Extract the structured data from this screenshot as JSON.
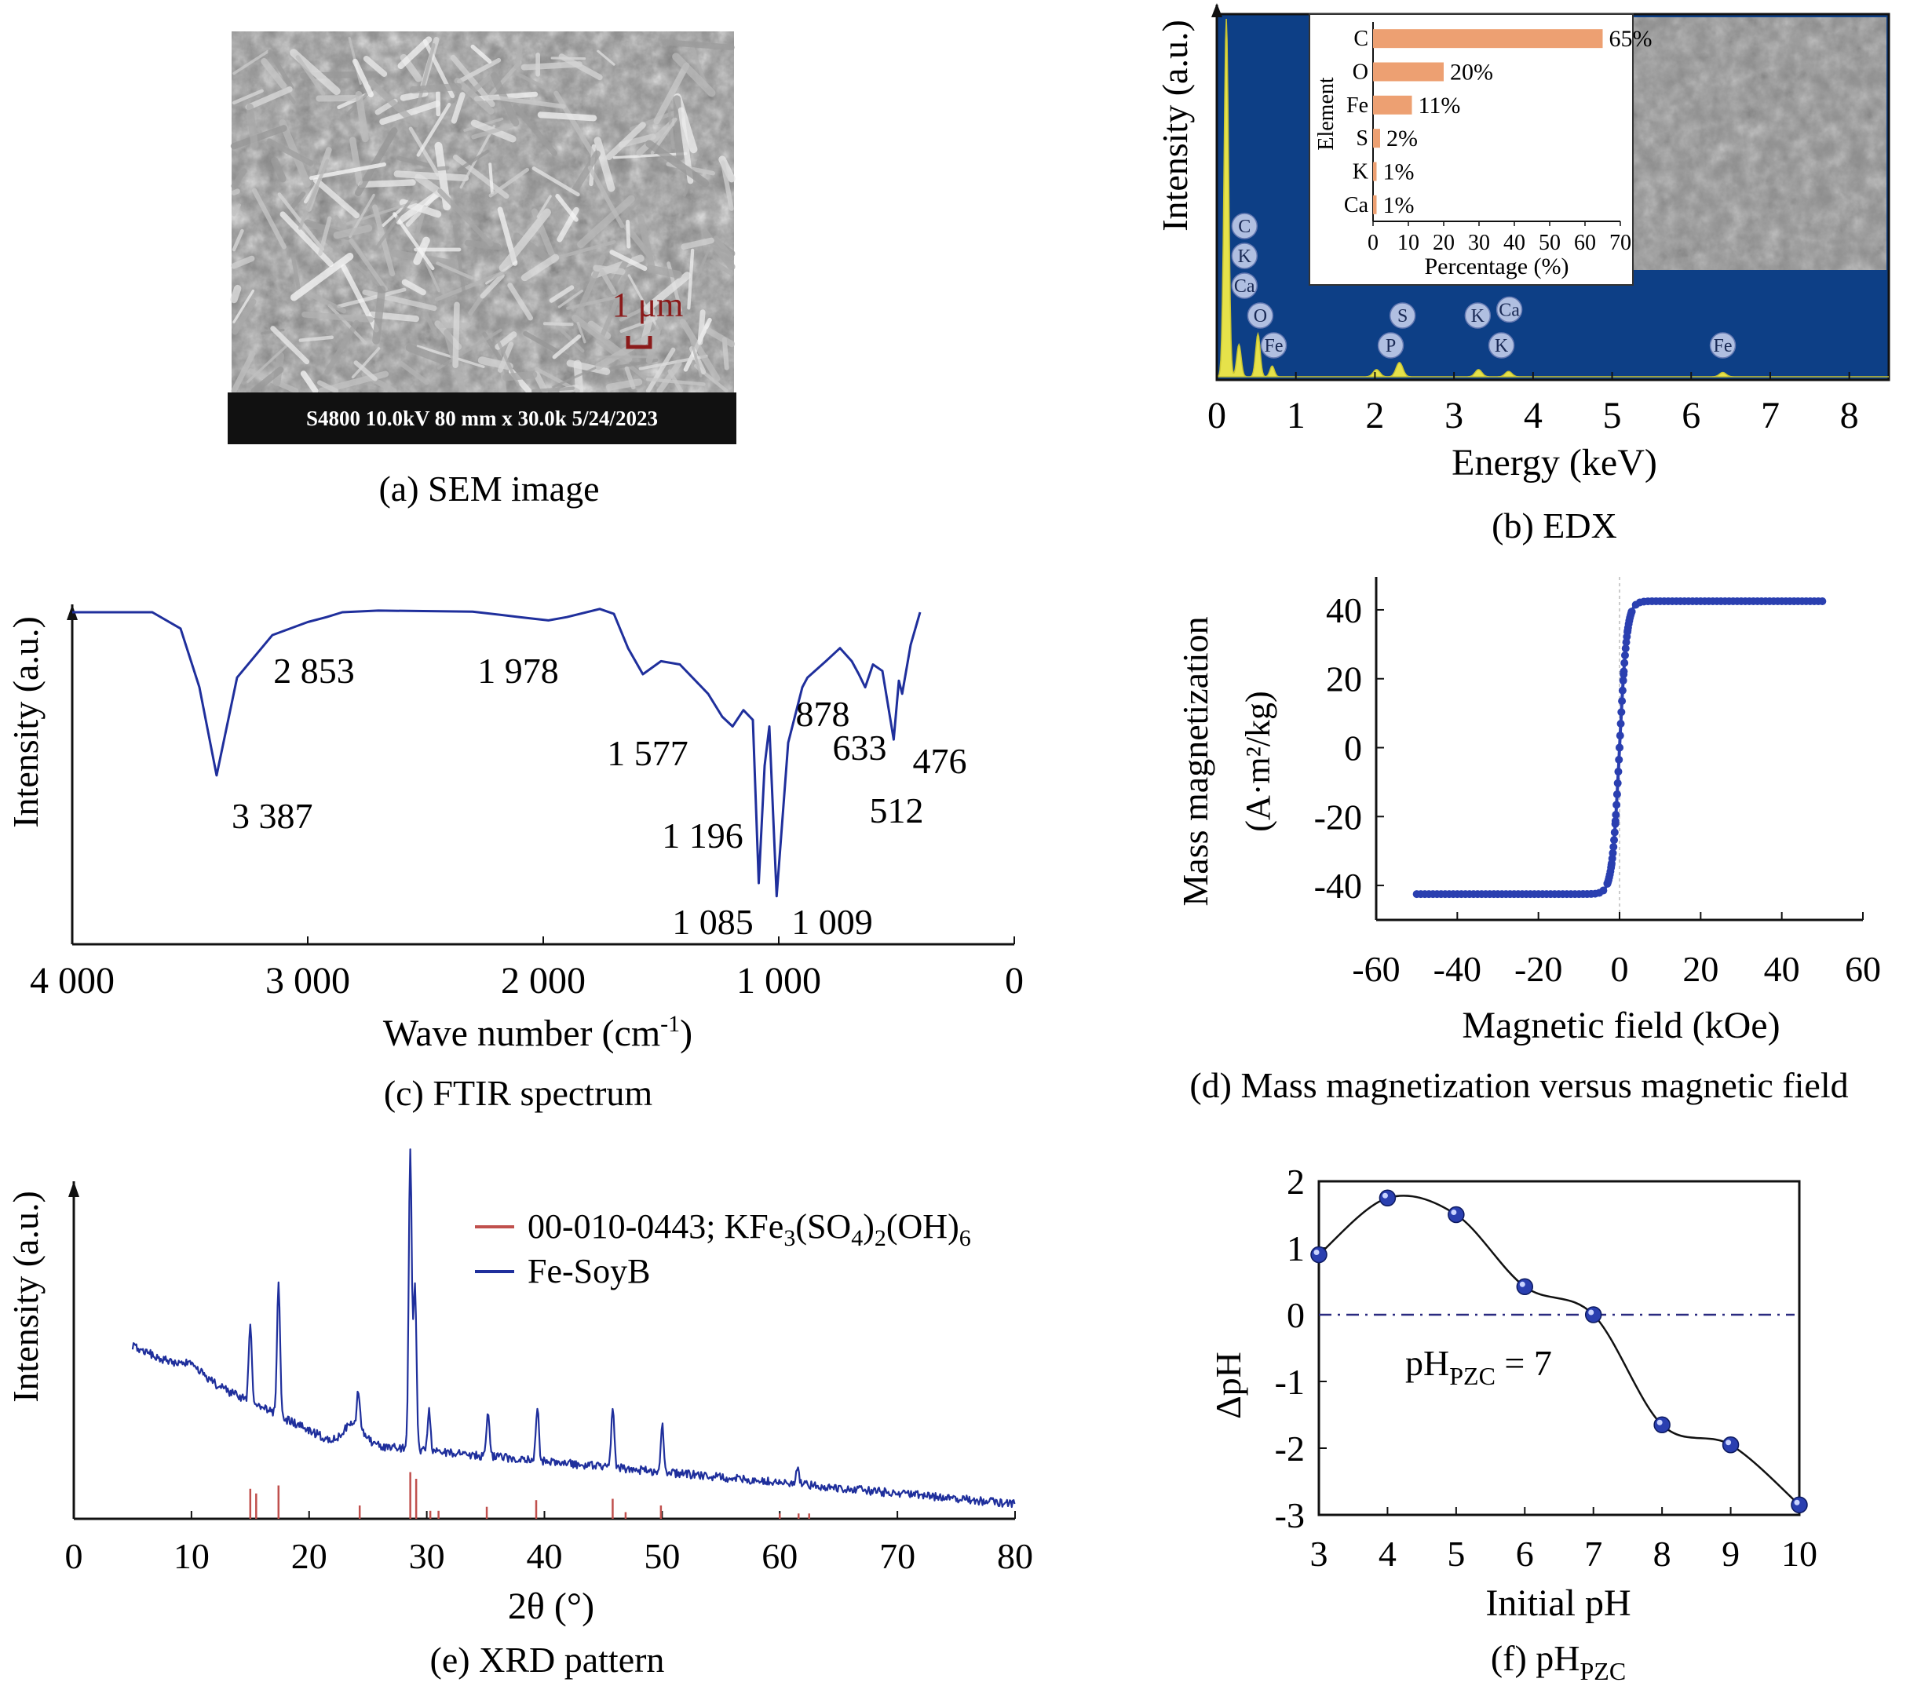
{
  "panels": {
    "a": {
      "caption": "(a) SEM image",
      "scale_label": "1 μm",
      "info_bar": "S4800 10.0kV 80 mm x 30.0k 5/24/2023"
    },
    "b": {
      "caption": "(b) EDX"
    },
    "c": {
      "caption": "(c) FTIR spectrum"
    },
    "d": {
      "caption": "(d) Mass magnetization versus magnetic field"
    },
    "e": {
      "caption": "(e) XRD pattern"
    },
    "f": {
      "caption_main": "(f) pH",
      "caption_sub": "PZC"
    }
  },
  "colors": {
    "spectrum_blue": "#1f2f9c",
    "edx_bg": "#0d3f86",
    "edx_peak": "#e6e24a",
    "bar_orange": "#eda072",
    "xrd_ref": "#c0504d",
    "marker_blue": "#2a3fb0",
    "sem_dark": "#1a1a1a",
    "scale_red": "#8b1a1a"
  },
  "chart_data": [
    {
      "id": "edx",
      "type": "line",
      "xlabel": "Energy (keV)",
      "ylabel": "Intensity (a.u.)",
      "xlim": [
        0,
        8.5
      ],
      "xticks": [
        0,
        1,
        2,
        3,
        4,
        5,
        6,
        7,
        8
      ],
      "peaks": [
        {
          "x": 0.12,
          "h": 1.0
        },
        {
          "x": 0.28,
          "h": 0.09
        },
        {
          "x": 0.52,
          "h": 0.12
        },
        {
          "x": 0.7,
          "h": 0.03
        },
        {
          "x": 2.02,
          "h": 0.02
        },
        {
          "x": 2.31,
          "h": 0.04
        },
        {
          "x": 3.31,
          "h": 0.02
        },
        {
          "x": 3.69,
          "h": 0.015
        },
        {
          "x": 6.4,
          "h": 0.012
        }
      ],
      "peak_labels": [
        {
          "label": "C",
          "x": 0.35,
          "level": 5
        },
        {
          "label": "K",
          "x": 0.35,
          "level": 4
        },
        {
          "label": "Ca",
          "x": 0.35,
          "level": 3
        },
        {
          "label": "O",
          "x": 0.55,
          "level": 2
        },
        {
          "label": "Fe",
          "x": 0.72,
          "level": 1
        },
        {
          "label": "S",
          "x": 2.35,
          "level": 2
        },
        {
          "label": "P",
          "x": 2.2,
          "level": 1
        },
        {
          "label": "K",
          "x": 3.3,
          "level": 2
        },
        {
          "label": "Ca",
          "x": 3.7,
          "level": 2.2
        },
        {
          "label": "K",
          "x": 3.6,
          "level": 1
        },
        {
          "label": "Fe",
          "x": 6.4,
          "level": 1
        }
      ],
      "inset": {
        "type": "bar",
        "orientation": "horizontal",
        "ylabel": "Element",
        "xlabel": "Percentage (%)",
        "xlim": [
          0,
          70
        ],
        "xticks": [
          0,
          10,
          20,
          30,
          40,
          50,
          60,
          70
        ],
        "categories": [
          "C",
          "O",
          "Fe",
          "S",
          "K",
          "Ca"
        ],
        "values": [
          65,
          20,
          11,
          2,
          1,
          1
        ],
        "value_labels": [
          "65%",
          "20%",
          "11%",
          "2%",
          "1%",
          "1%"
        ]
      }
    },
    {
      "id": "ftir",
      "type": "line",
      "xlabel_main": "Wave number (cm",
      "xlabel_sup": "-1",
      "xlabel_end": ")",
      "ylabel": "Intensity (a.u.)",
      "xlim": [
        4000,
        0
      ],
      "xticks": [
        4000,
        3000,
        2000,
        1000,
        0
      ],
      "xtick_labels": [
        "4 000",
        "3 000",
        "2 000",
        "1 000",
        "0"
      ],
      "points": [
        [
          4000,
          0.95
        ],
        [
          3660,
          0.95
        ],
        [
          3540,
          0.9
        ],
        [
          3460,
          0.72
        ],
        [
          3387,
          0.45
        ],
        [
          3300,
          0.75
        ],
        [
          3150,
          0.88
        ],
        [
          3000,
          0.92
        ],
        [
          2920,
          0.935
        ],
        [
          2853,
          0.95
        ],
        [
          2700,
          0.955
        ],
        [
          2300,
          0.952
        ],
        [
          2100,
          0.935
        ],
        [
          1978,
          0.925
        ],
        [
          1900,
          0.935
        ],
        [
          1760,
          0.96
        ],
        [
          1700,
          0.945
        ],
        [
          1640,
          0.84
        ],
        [
          1577,
          0.76
        ],
        [
          1500,
          0.8
        ],
        [
          1420,
          0.79
        ],
        [
          1300,
          0.7
        ],
        [
          1240,
          0.63
        ],
        [
          1196,
          0.6
        ],
        [
          1150,
          0.65
        ],
        [
          1110,
          0.62
        ],
        [
          1085,
          0.12
        ],
        [
          1060,
          0.48
        ],
        [
          1040,
          0.6
        ],
        [
          1009,
          0.08
        ],
        [
          960,
          0.55
        ],
        [
          900,
          0.72
        ],
        [
          878,
          0.75
        ],
        [
          800,
          0.8
        ],
        [
          740,
          0.84
        ],
        [
          690,
          0.8
        ],
        [
          660,
          0.76
        ],
        [
          633,
          0.72
        ],
        [
          600,
          0.79
        ],
        [
          560,
          0.77
        ],
        [
          512,
          0.56
        ],
        [
          490,
          0.74
        ],
        [
          476,
          0.7
        ],
        [
          440,
          0.85
        ],
        [
          400,
          0.95
        ]
      ],
      "annotations": [
        {
          "label": "3 387",
          "x": 3387
        },
        {
          "label": "2 853",
          "x": 2853
        },
        {
          "label": "1 978",
          "x": 1978
        },
        {
          "label": "1 577",
          "x": 1577
        },
        {
          "label": "1 196",
          "x": 1196
        },
        {
          "label": "1 085",
          "x": 1085
        },
        {
          "label": "1 009",
          "x": 1009
        },
        {
          "label": "878",
          "x": 878
        },
        {
          "label": "633",
          "x": 633
        },
        {
          "label": "512",
          "x": 512
        },
        {
          "label": "476",
          "x": 476
        }
      ]
    },
    {
      "id": "magnetization",
      "type": "scatter",
      "xlabel": "Magnetic field (kOe)",
      "ylabel_line1": "Mass magnetization",
      "ylabel_line2": "(A·m²/kg)",
      "xlim": [
        -60,
        60
      ],
      "ylim": [
        -50,
        45
      ],
      "xticks": [
        -60,
        -40,
        -20,
        0,
        20,
        40,
        60
      ],
      "yticks": [
        -40,
        -20,
        0,
        20,
        40
      ],
      "ms": 42.5,
      "h_scale": 0.55,
      "range": [
        -50,
        50
      ]
    },
    {
      "id": "xrd",
      "type": "line",
      "xlabel": "2θ (°)",
      "ylabel": "Intensity (a.u.)",
      "xlim": [
        0,
        80
      ],
      "xticks": [
        0,
        10,
        20,
        30,
        40,
        50,
        60,
        70,
        80
      ],
      "legend": [
        "00-010-0443; KFe3(SO4)2(OH)6",
        "Fe-SoyB"
      ],
      "peaks": [
        {
          "x": 15.0,
          "h": 0.23
        },
        {
          "x": 17.4,
          "h": 0.41
        },
        {
          "x": 24.2,
          "h": 0.11
        },
        {
          "x": 28.6,
          "h": 0.9
        },
        {
          "x": 29.0,
          "h": 0.5
        },
        {
          "x": 30.2,
          "h": 0.12
        },
        {
          "x": 35.2,
          "h": 0.12
        },
        {
          "x": 39.4,
          "h": 0.16
        },
        {
          "x": 45.8,
          "h": 0.18
        },
        {
          "x": 50.0,
          "h": 0.14
        },
        {
          "x": 61.5,
          "h": 0.05
        }
      ],
      "ref_lines": [
        {
          "x": 15.0,
          "h": 0.45
        },
        {
          "x": 15.5,
          "h": 0.38
        },
        {
          "x": 17.4,
          "h": 0.5
        },
        {
          "x": 24.3,
          "h": 0.2
        },
        {
          "x": 28.6,
          "h": 0.7
        },
        {
          "x": 29.1,
          "h": 0.6
        },
        {
          "x": 30.3,
          "h": 0.12
        },
        {
          "x": 31.0,
          "h": 0.12
        },
        {
          "x": 35.1,
          "h": 0.18
        },
        {
          "x": 39.3,
          "h": 0.28
        },
        {
          "x": 45.8,
          "h": 0.3
        },
        {
          "x": 46.9,
          "h": 0.1
        },
        {
          "x": 49.9,
          "h": 0.2
        },
        {
          "x": 60.0,
          "h": 0.08
        },
        {
          "x": 61.6,
          "h": 0.08
        },
        {
          "x": 62.5,
          "h": 0.08
        }
      ]
    },
    {
      "id": "phpzc",
      "type": "line",
      "xlabel": "Initial pH",
      "ylabel": "ΔpH",
      "xlim": [
        3,
        10
      ],
      "ylim": [
        -3,
        2
      ],
      "xticks": [
        3,
        4,
        5,
        6,
        7,
        8,
        9,
        10
      ],
      "yticks": [
        2,
        1,
        0,
        -1,
        -2,
        -3
      ],
      "x": [
        3,
        4,
        5,
        6,
        7,
        8,
        9,
        10
      ],
      "y": [
        0.9,
        1.75,
        1.5,
        0.42,
        0,
        -1.65,
        -1.95,
        -2.85
      ],
      "annotation_main": "pH",
      "annotation_sub": "PZC",
      "annotation_end": " = 7"
    }
  ]
}
